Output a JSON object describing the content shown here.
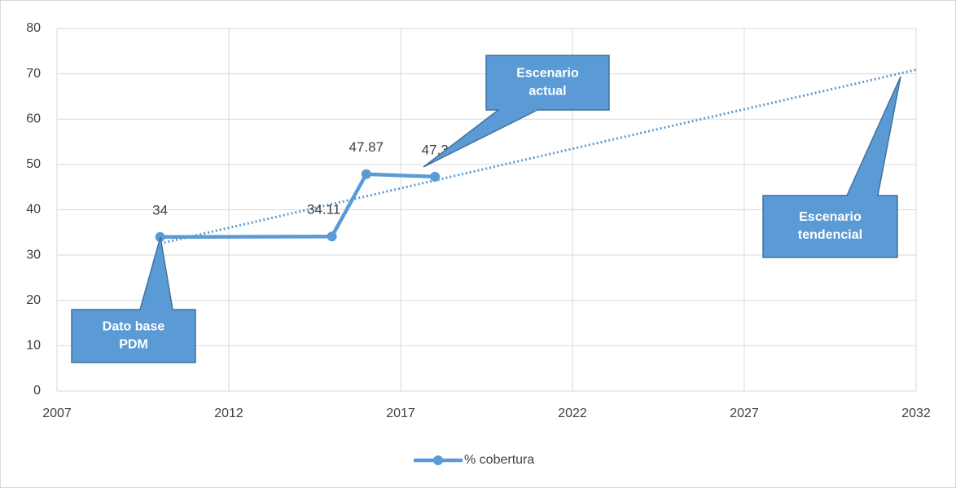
{
  "chart_data": {
    "type": "line",
    "x": [
      2010,
      2015,
      2016,
      2018
    ],
    "series": [
      {
        "name": "% cobertura",
        "color": "#5b9bd5",
        "values": [
          34,
          34.11,
          47.87,
          47.3
        ]
      }
    ],
    "trendline": "linear",
    "xlim": [
      2007,
      2032
    ],
    "xticks": [
      2007,
      2012,
      2017,
      2022,
      2027,
      2032
    ],
    "ylim": [
      0,
      80
    ],
    "yticks": [
      0,
      10,
      20,
      30,
      40,
      50,
      60,
      70,
      80
    ],
    "grid": true,
    "legend": "bottom",
    "annotations": [
      {
        "lines": [
          "Dato base",
          "PDM"
        ]
      },
      {
        "lines": [
          "Escenario",
          "actual"
        ]
      },
      {
        "lines": [
          "Escenario",
          "tendencial"
        ]
      }
    ]
  }
}
